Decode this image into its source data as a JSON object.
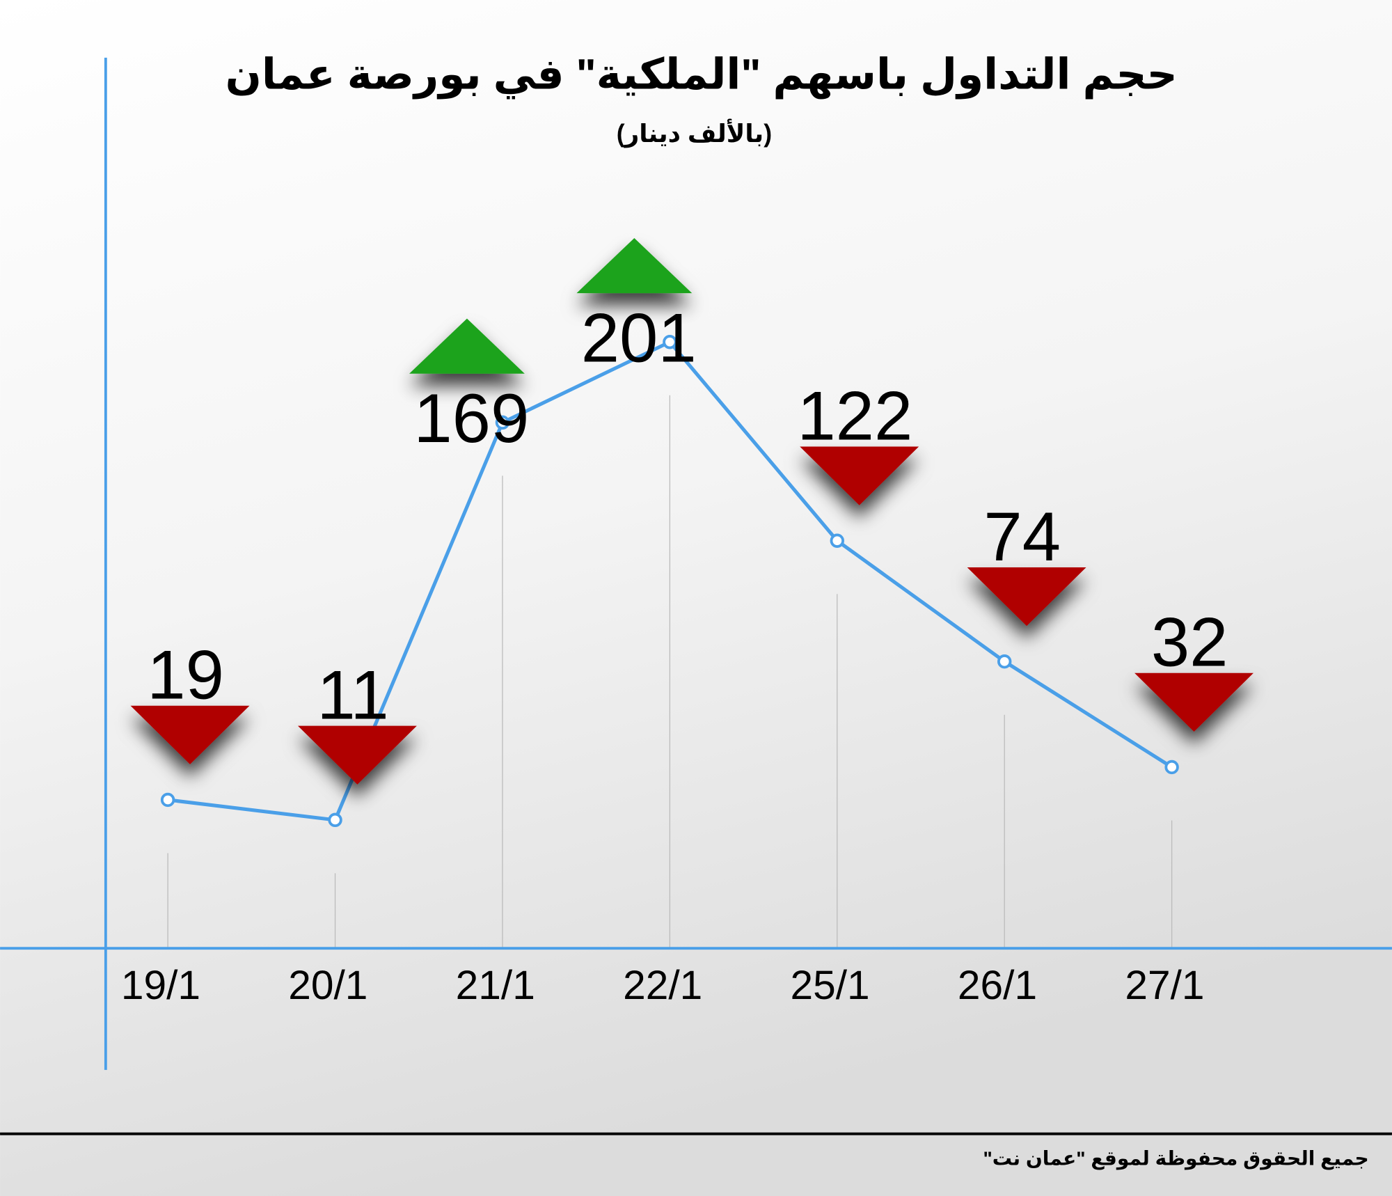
{
  "chart_data": {
    "type": "line",
    "title": "حجم التداول باسهم \"الملكية\" في بورصة عمان",
    "subtitle": "(بالألف دينار)",
    "footer": "جميع الحقوق محفوظة لموقع \"عمان نت\"",
    "categories": [
      "19/1",
      "20/1",
      "21/1",
      "22/1",
      "25/1",
      "26/1",
      "27/1"
    ],
    "values": [
      19,
      11,
      169,
      201,
      122,
      74,
      32
    ],
    "arrows": [
      "down",
      "down",
      "up",
      "up",
      "down",
      "down",
      "down"
    ],
    "arrow_colors": {
      "up": "#1fa31f",
      "down": "#b00000"
    },
    "color": "#4a9fe8",
    "ylim": [
      -40,
      320
    ]
  }
}
